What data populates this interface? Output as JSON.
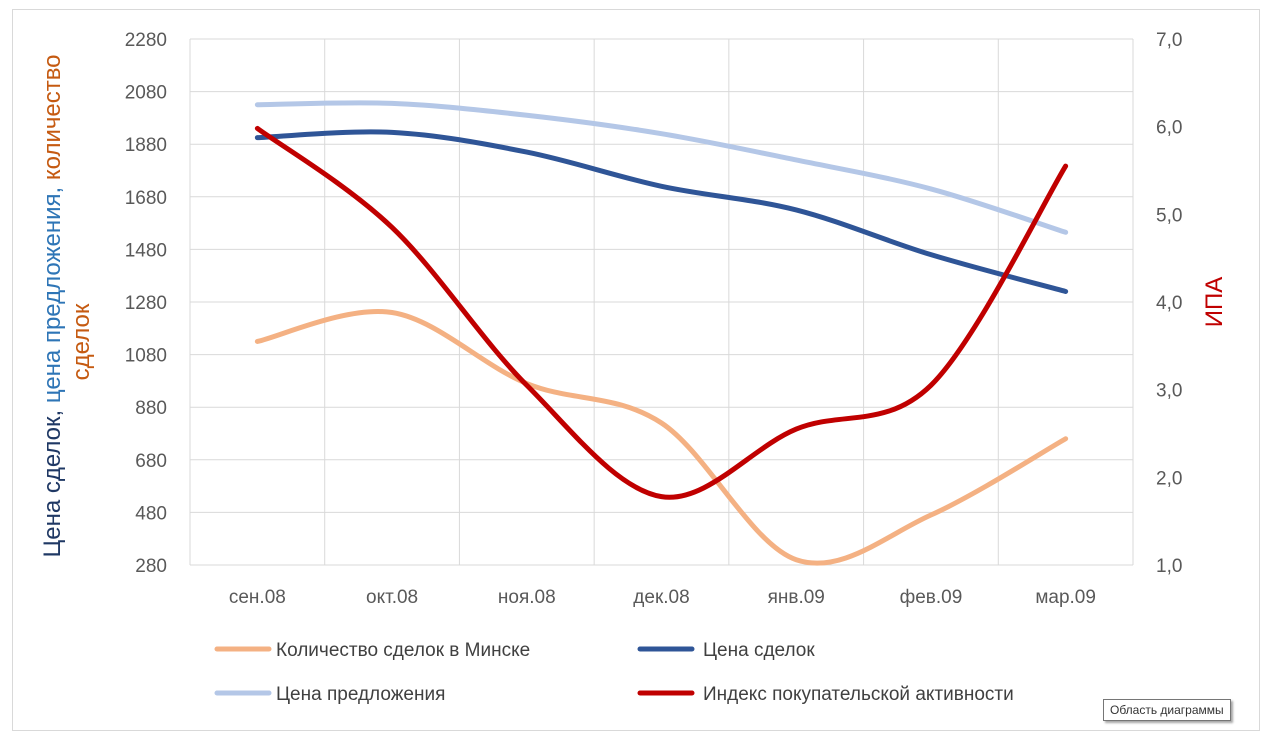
{
  "chart_data": {
    "type": "line",
    "categories": [
      "сен.08",
      "окт.08",
      "ноя.08",
      "дек.08",
      "янв.09",
      "фев.09",
      "мар.09"
    ],
    "y_left": {
      "ticks": [
        "280",
        "480",
        "680",
        "880",
        "1080",
        "1280",
        "1480",
        "1680",
        "1880",
        "2080",
        "2280"
      ],
      "range": [
        280,
        2280
      ]
    },
    "y_right": {
      "ticks": [
        "1,0",
        "2,0",
        "3,0",
        "4,0",
        "5,0",
        "6,0",
        "7,0"
      ],
      "range": [
        1.0,
        7.0
      ]
    },
    "left_title": [
      {
        "text": "Цена сделок, ",
        "color": "#1f3864"
      },
      {
        "text": "цена предложения, ",
        "color": "#2e75b6"
      },
      {
        "text": "количество",
        "color": "#c55a11"
      }
    ],
    "left_title_line2": {
      "text": "сделок",
      "color": "#c55a11"
    },
    "right_title": {
      "text": "ИПА",
      "color": "#c00000"
    },
    "series": [
      {
        "name": "Количество сделок в Минске",
        "axis": "left",
        "color": "#f4b183",
        "values": [
          1130,
          1240,
          970,
          820,
          300,
          470,
          760
        ]
      },
      {
        "name": "Цена сделок",
        "axis": "left",
        "color": "#2f5597",
        "values": [
          1905,
          1925,
          1850,
          1720,
          1630,
          1460,
          1320
        ]
      },
      {
        "name": "Цена предложения",
        "axis": "left",
        "color": "#b4c7e7",
        "values": [
          2030,
          2035,
          1990,
          1920,
          1820,
          1710,
          1545
        ]
      },
      {
        "name": "Индекс покупательской активности",
        "axis": "right",
        "color": "#c00000",
        "values": [
          5.98,
          4.85,
          3.05,
          1.78,
          2.55,
          3.05,
          5.55
        ]
      }
    ],
    "legend_position": "bottom"
  },
  "tooltip": {
    "label": "Область диаграммы"
  }
}
